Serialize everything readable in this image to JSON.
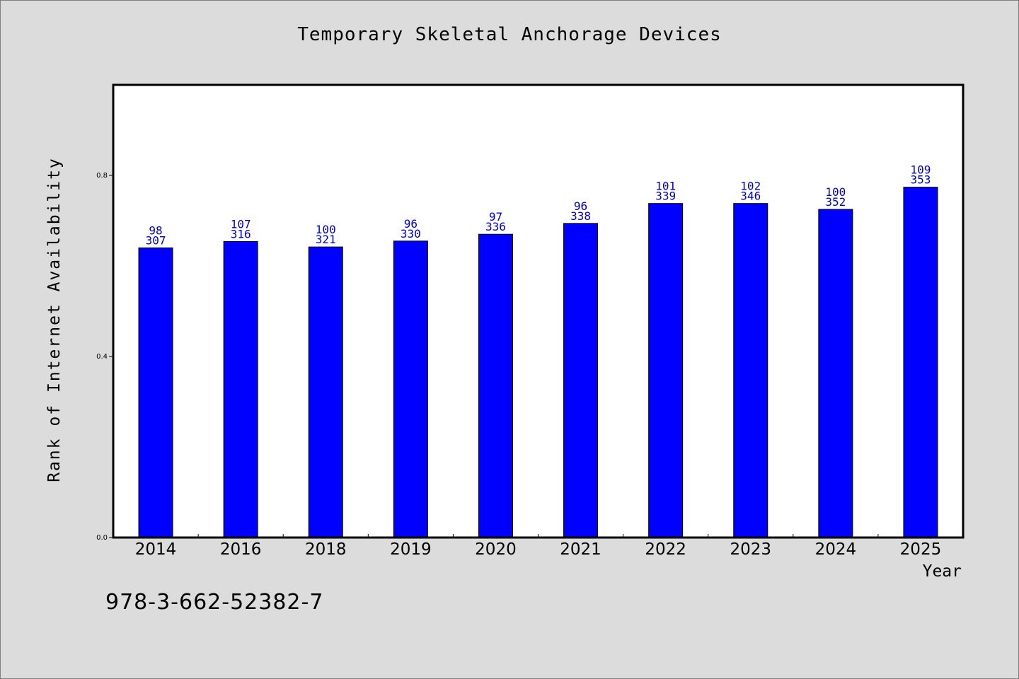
{
  "chart_data": {
    "type": "bar",
    "title": "Temporary Skeletal Anchorage Devices",
    "xlabel": "Year",
    "ylabel": "Rank of Internet Availability",
    "categories": [
      "2014",
      "2016",
      "2018",
      "2019",
      "2020",
      "2021",
      "2022",
      "2023",
      "2024",
      "2025"
    ],
    "values": [
      0.64,
      0.654,
      0.642,
      0.655,
      0.67,
      0.694,
      0.738,
      0.738,
      0.725,
      0.774
    ],
    "bar_labels_top": [
      "98",
      "107",
      "100",
      "96",
      "97",
      "96",
      "101",
      "102",
      "100",
      "109"
    ],
    "bar_labels_bottom": [
      "307",
      "316",
      "321",
      "330",
      "336",
      "338",
      "339",
      "346",
      "352",
      "353"
    ],
    "ylim": [
      0,
      1.0
    ],
    "yticks": [
      "0.0",
      "0.4",
      "0.8"
    ],
    "ytick_values": [
      0,
      0.4,
      0.8
    ],
    "grid": false,
    "bar_color": "#0000ff",
    "label_color": "#0000cc"
  },
  "footer": {
    "code": "978-3-662-52382-7"
  }
}
